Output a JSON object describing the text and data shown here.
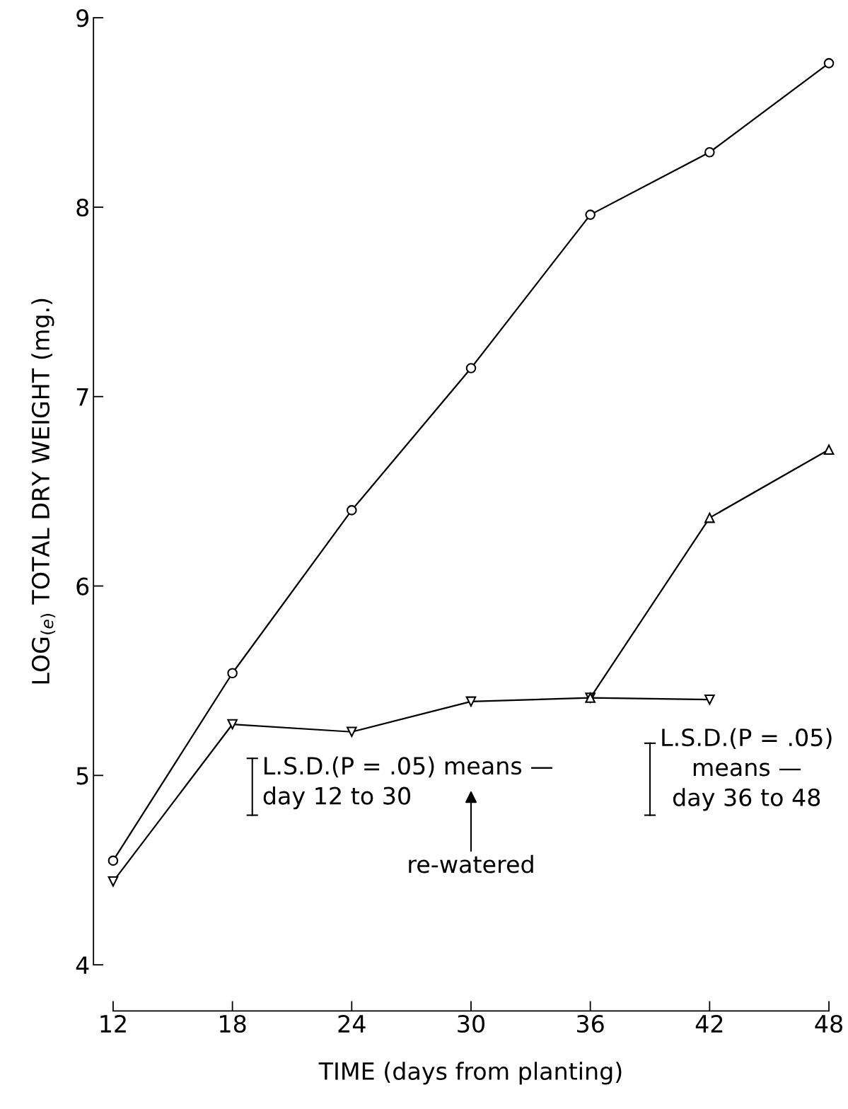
{
  "chart_data": {
    "type": "line",
    "xlabel": "TIME (days from planting)",
    "ylabel": "LOG$_{(e)}$ TOTAL DRY WEIGHT (mg.)",
    "x": [
      12,
      18,
      24,
      30,
      36,
      42,
      48
    ],
    "series": [
      {
        "color": "#000000",
        "marker": "circle",
        "values": [
          4.55,
          5.54,
          6.4,
          7.15,
          7.96,
          8.29,
          8.76
        ]
      },
      {
        "color": "#000000",
        "marker": "triangle_down",
        "values": [
          4.44,
          5.27,
          5.23,
          5.39,
          5.41,
          5.4,
          null
        ]
      },
      {
        "color": "#000000",
        "marker": "triangle",
        "values": [
          null,
          null,
          null,
          null,
          5.41,
          6.36,
          6.72
        ]
      }
    ],
    "xlim": [
      12,
      48
    ],
    "xticks": [
      12,
      18,
      24,
      30,
      36,
      42,
      48
    ],
    "ylim": [
      4,
      9
    ],
    "yticks": [
      4,
      5,
      6,
      7,
      8,
      9
    ],
    "grid": false,
    "legend": false,
    "line_style": "solid",
    "annotations": [
      "L.S.D.(P = .05) means —\nday 12 to 30",
      "L.S.D.(P = .05)\nmeans —\nday 36 to 48",
      "re-watered"
    ]
  }
}
